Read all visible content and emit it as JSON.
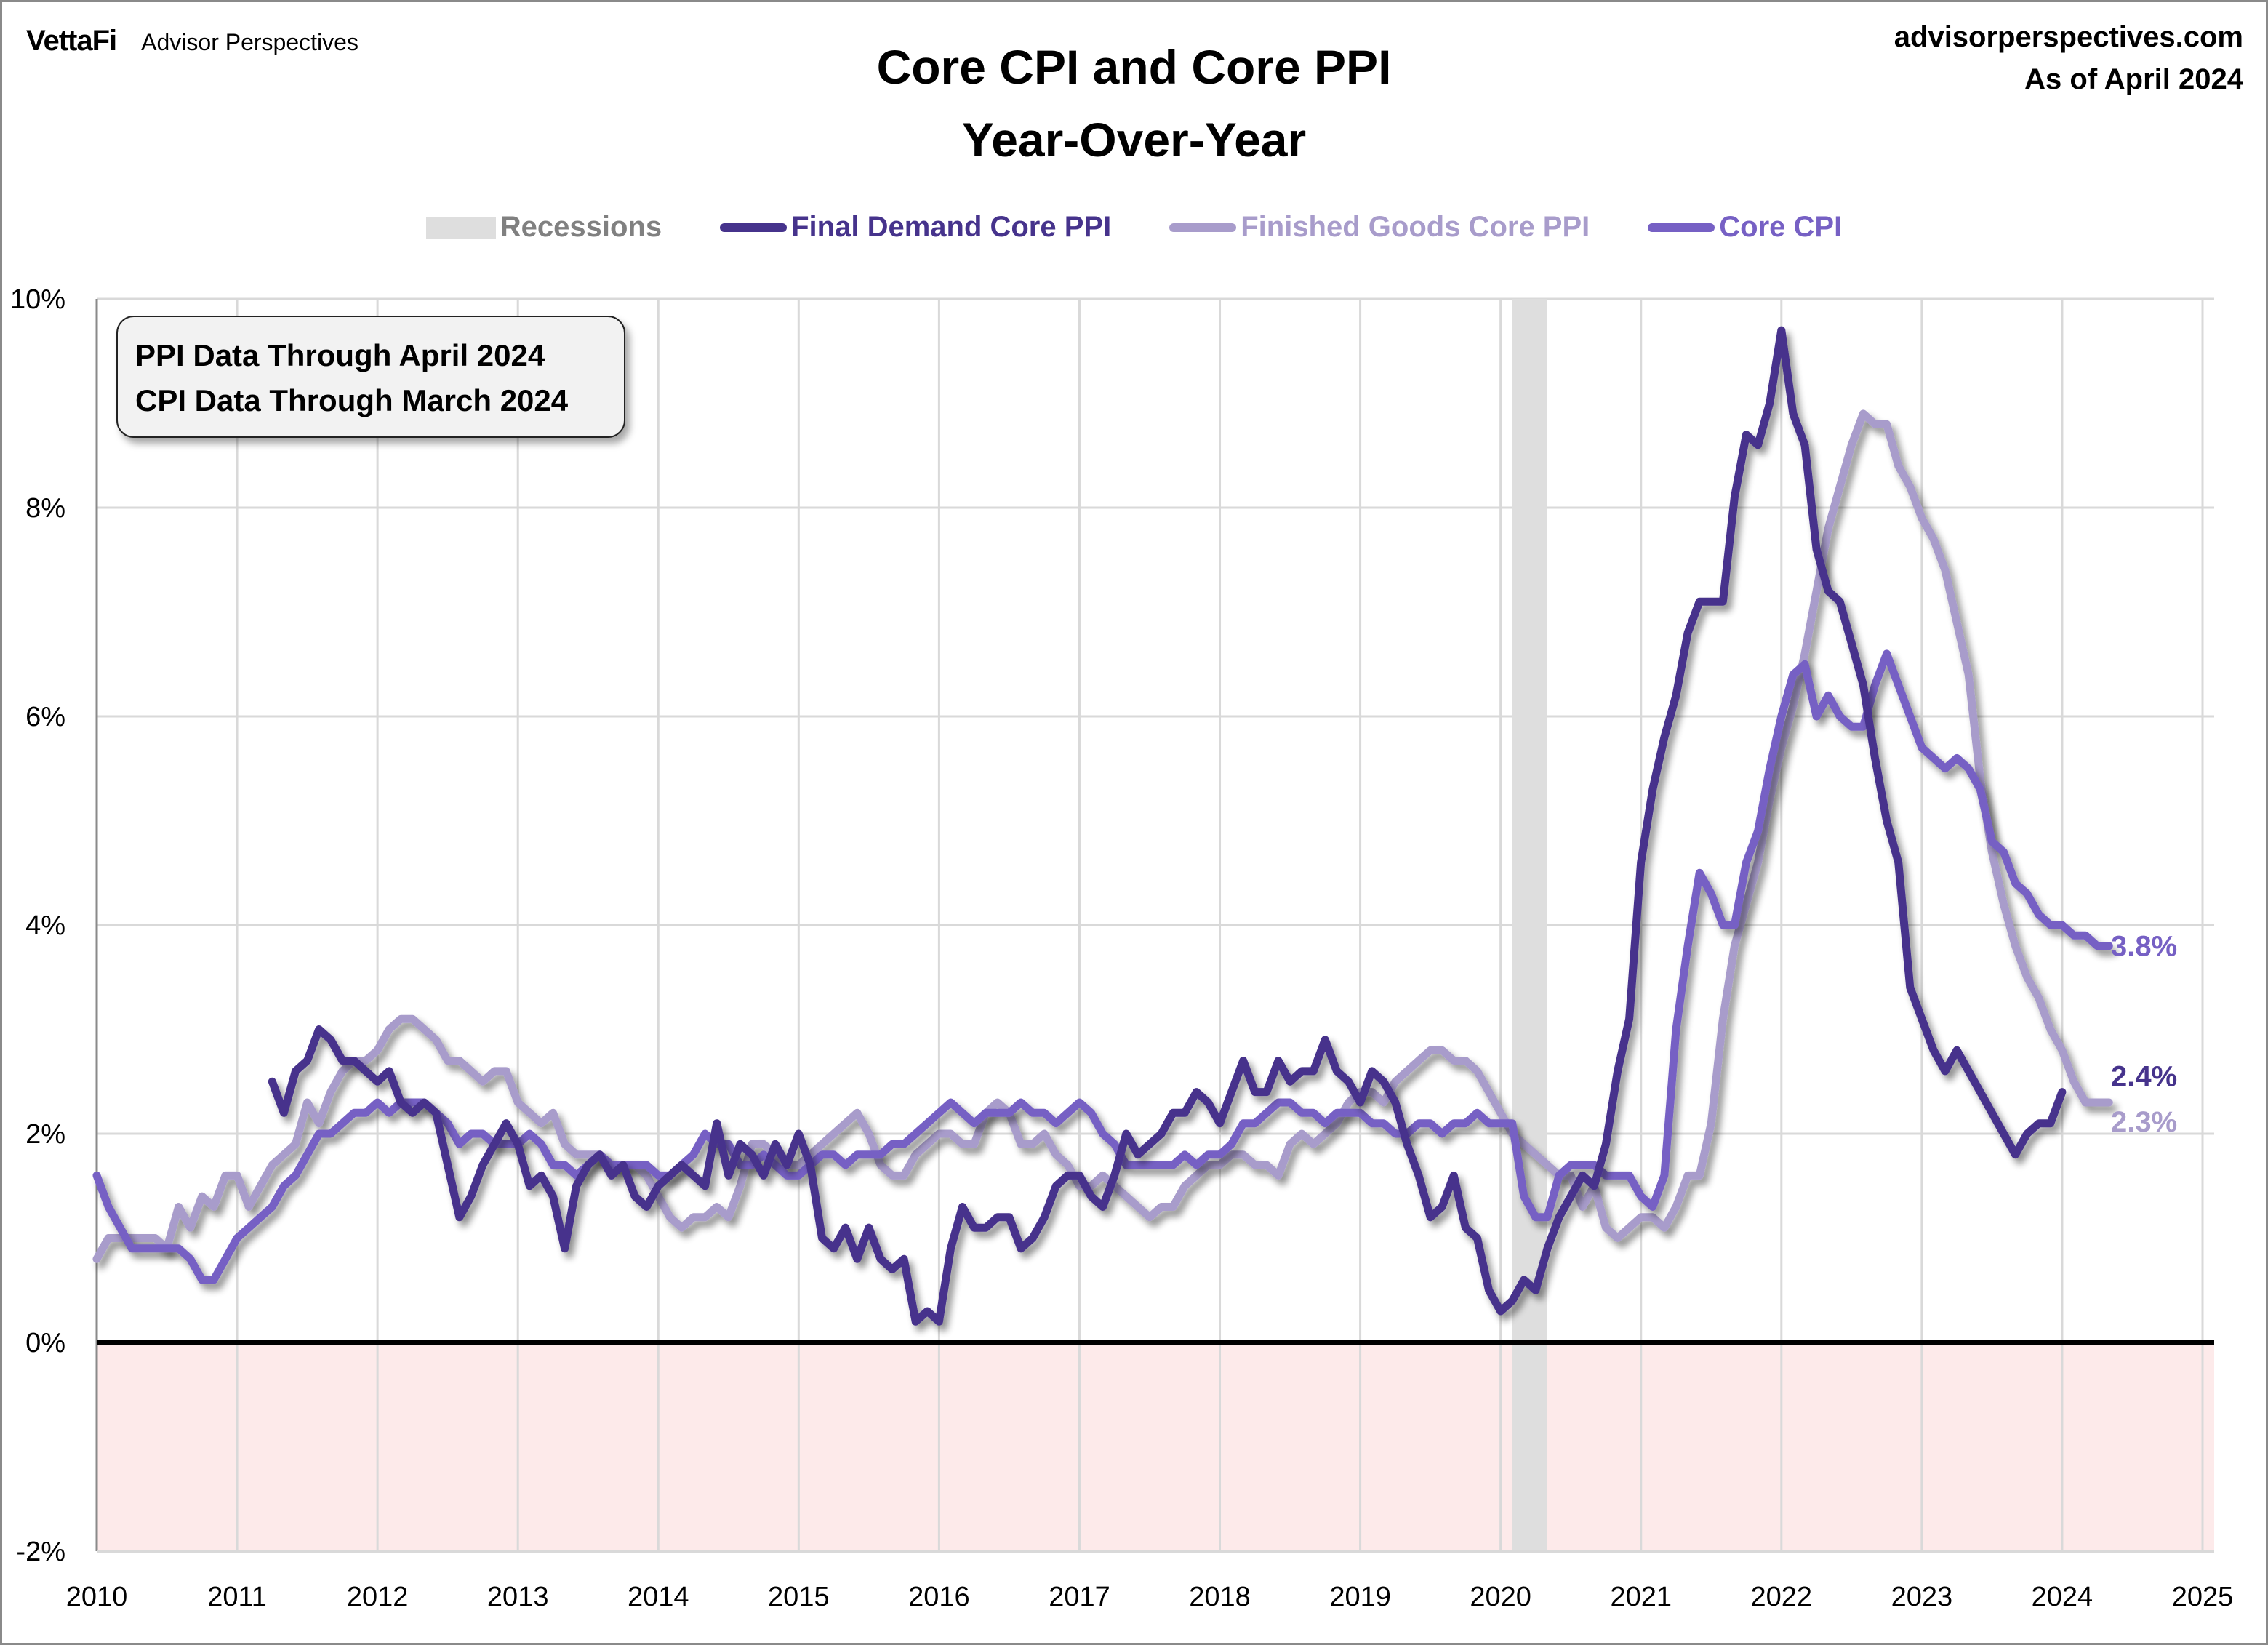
{
  "header": {
    "brand_logo": "VettaFi",
    "brand_name": "Advisor Perspectives",
    "title_line1": "Core CPI and Core PPI",
    "title_line2": "Year-Over-Year",
    "source_line1": "advisorperspectives.com",
    "source_line2": "As of April 2024"
  },
  "note": {
    "line1": "PPI Data Through April 2024",
    "line2": "CPI Data Through March 2024"
  },
  "legend": [
    {
      "label": "Recessions",
      "color": "#dedede",
      "kind": "box",
      "text_color": "#808080"
    },
    {
      "label": "Final Demand Core PPI",
      "color": "#46338c",
      "kind": "line",
      "text_color": "#46338c"
    },
    {
      "label": "Finished Goods Core PPI",
      "color": "#a89ccb",
      "kind": "line",
      "text_color": "#a89ccb"
    },
    {
      "label": "Core CPI",
      "color": "#7660c4",
      "kind": "line",
      "text_color": "#7660c4"
    }
  ],
  "chart_data": {
    "type": "line",
    "title": "Core CPI and Core PPI Year-Over-Year",
    "xlabel": "",
    "ylabel": "",
    "xlim": [
      2010,
      2025
    ],
    "ylim": [
      -2,
      10
    ],
    "x_ticks": [
      "2010",
      "2011",
      "2012",
      "2013",
      "2014",
      "2015",
      "2016",
      "2017",
      "2018",
      "2019",
      "2020",
      "2021",
      "2022",
      "2023",
      "2024",
      "2025"
    ],
    "y_ticks": [
      -2,
      0,
      2,
      4,
      6,
      8,
      10
    ],
    "y_tick_labels": [
      "-2%",
      "0%",
      "2%",
      "4%",
      "6%",
      "8%",
      "10%"
    ],
    "grid": true,
    "legend_position": "top-center",
    "negative_region_shading": "#fdeaea",
    "zero_line": true,
    "recessions": [
      {
        "start": 2020.083,
        "end": 2020.333
      }
    ],
    "series": [
      {
        "name": "Final Demand Core PPI",
        "color": "#46338c",
        "start": 2011.25,
        "step_months": 1,
        "end_label": "2.4%",
        "values": [
          2.5,
          2.2,
          2.6,
          2.7,
          3.0,
          2.9,
          2.7,
          2.7,
          2.6,
          2.5,
          2.6,
          2.3,
          2.2,
          2.3,
          2.2,
          1.7,
          1.2,
          1.4,
          1.7,
          1.9,
          2.1,
          1.9,
          1.5,
          1.6,
          1.4,
          0.9,
          1.5,
          1.7,
          1.8,
          1.6,
          1.7,
          1.4,
          1.3,
          1.5,
          1.6,
          1.7,
          1.6,
          1.5,
          2.1,
          1.6,
          1.9,
          1.8,
          1.6,
          1.9,
          1.7,
          2.0,
          1.7,
          1.0,
          0.9,
          1.1,
          0.8,
          1.1,
          0.8,
          0.7,
          0.8,
          0.2,
          0.3,
          0.2,
          0.9,
          1.3,
          1.1,
          1.1,
          1.2,
          1.2,
          0.9,
          1.0,
          1.2,
          1.5,
          1.6,
          1.6,
          1.4,
          1.3,
          1.6,
          2.0,
          1.8,
          1.9,
          2.0,
          2.2,
          2.2,
          2.4,
          2.3,
          2.1,
          2.4,
          2.7,
          2.4,
          2.4,
          2.7,
          2.5,
          2.6,
          2.6,
          2.9,
          2.6,
          2.5,
          2.3,
          2.6,
          2.5,
          2.3,
          1.9,
          1.6,
          1.2,
          1.3,
          1.6,
          1.1,
          1.0,
          0.5,
          0.3,
          0.4,
          0.6,
          0.5,
          0.9,
          1.2,
          1.4,
          1.6,
          1.5,
          1.9,
          2.6,
          3.1,
          4.6,
          5.3,
          5.8,
          6.2,
          6.8,
          7.1,
          7.1,
          7.1,
          8.1,
          8.7,
          8.6,
          9.0,
          9.7,
          8.9,
          8.6,
          7.6,
          7.2,
          7.1,
          6.7,
          6.3,
          5.6,
          5.0,
          4.6,
          3.4,
          3.1,
          2.8,
          2.6,
          2.8,
          2.6,
          2.4,
          2.2,
          2.0,
          1.8,
          2.0,
          2.1,
          2.1,
          2.4
        ]
      },
      {
        "name": "Finished Goods Core PPI",
        "color": "#a89ccb",
        "start": 2010.0,
        "step_months": 1,
        "end_label": "2.3%",
        "values": [
          0.8,
          1.0,
          1.0,
          1.0,
          1.0,
          1.0,
          0.9,
          1.3,
          1.1,
          1.4,
          1.3,
          1.6,
          1.6,
          1.3,
          1.5,
          1.7,
          1.8,
          1.9,
          2.3,
          2.1,
          2.4,
          2.6,
          2.7,
          2.7,
          2.8,
          3.0,
          3.1,
          3.1,
          3.0,
          2.9,
          2.7,
          2.7,
          2.6,
          2.5,
          2.6,
          2.6,
          2.3,
          2.2,
          2.1,
          2.2,
          1.9,
          1.8,
          1.8,
          1.8,
          1.7,
          1.7,
          1.7,
          1.6,
          1.4,
          1.2,
          1.1,
          1.2,
          1.2,
          1.3,
          1.2,
          1.5,
          1.9,
          1.9,
          1.8,
          1.7,
          1.7,
          1.8,
          1.9,
          2.0,
          2.1,
          2.2,
          2.0,
          1.7,
          1.6,
          1.6,
          1.8,
          1.9,
          2.0,
          2.0,
          1.9,
          1.9,
          2.2,
          2.3,
          2.2,
          1.9,
          1.9,
          2.0,
          1.8,
          1.7,
          1.5,
          1.5,
          1.6,
          1.5,
          1.4,
          1.3,
          1.2,
          1.3,
          1.3,
          1.5,
          1.6,
          1.7,
          1.7,
          1.8,
          1.8,
          1.7,
          1.7,
          1.6,
          1.9,
          2.0,
          1.9,
          2.0,
          2.1,
          2.3,
          2.4,
          2.4,
          2.3,
          2.5,
          2.6,
          2.7,
          2.8,
          2.8,
          2.7,
          2.7,
          2.6,
          2.4,
          2.2,
          2.0,
          1.9,
          1.8,
          1.7,
          1.6,
          1.6,
          1.3,
          1.5,
          1.1,
          1.0,
          1.1,
          1.2,
          1.2,
          1.1,
          1.3,
          1.6,
          1.6,
          2.1,
          3.1,
          3.8,
          4.2,
          4.6,
          5.2,
          5.7,
          6.1,
          6.6,
          7.2,
          7.8,
          8.2,
          8.6,
          8.9,
          8.8,
          8.8,
          8.4,
          8.2,
          7.9,
          7.7,
          7.4,
          6.9,
          6.4,
          5.4,
          4.7,
          4.2,
          3.8,
          3.5,
          3.3,
          3.0,
          2.8,
          2.5,
          2.3,
          2.3,
          2.3
        ]
      },
      {
        "name": "Core CPI",
        "color": "#7660c4",
        "start": 2010.0,
        "step_months": 1,
        "end_label": "3.8%",
        "values": [
          1.6,
          1.3,
          1.1,
          0.9,
          0.9,
          0.9,
          0.9,
          0.9,
          0.8,
          0.6,
          0.6,
          0.8,
          1.0,
          1.1,
          1.2,
          1.3,
          1.5,
          1.6,
          1.8,
          2.0,
          2.0,
          2.1,
          2.2,
          2.2,
          2.3,
          2.2,
          2.3,
          2.3,
          2.3,
          2.2,
          2.1,
          1.9,
          2.0,
          2.0,
          1.9,
          1.9,
          1.9,
          2.0,
          1.9,
          1.7,
          1.7,
          1.6,
          1.7,
          1.8,
          1.7,
          1.7,
          1.7,
          1.7,
          1.6,
          1.6,
          1.7,
          1.8,
          2.0,
          1.9,
          1.9,
          1.7,
          1.7,
          1.8,
          1.7,
          1.6,
          1.6,
          1.7,
          1.8,
          1.8,
          1.7,
          1.8,
          1.8,
          1.8,
          1.9,
          1.9,
          2.0,
          2.1,
          2.2,
          2.3,
          2.2,
          2.1,
          2.2,
          2.2,
          2.2,
          2.3,
          2.2,
          2.2,
          2.1,
          2.2,
          2.3,
          2.2,
          2.0,
          1.9,
          1.7,
          1.7,
          1.7,
          1.7,
          1.7,
          1.8,
          1.7,
          1.8,
          1.8,
          1.9,
          2.1,
          2.1,
          2.2,
          2.3,
          2.3,
          2.2,
          2.2,
          2.1,
          2.2,
          2.2,
          2.2,
          2.1,
          2.1,
          2.0,
          2.0,
          2.1,
          2.1,
          2.0,
          2.1,
          2.1,
          2.2,
          2.1,
          2.1,
          2.1,
          1.4,
          1.2,
          1.2,
          1.6,
          1.7,
          1.7,
          1.7,
          1.6,
          1.6,
          1.6,
          1.4,
          1.3,
          1.6,
          3.0,
          3.8,
          4.5,
          4.3,
          4.0,
          4.0,
          4.6,
          4.9,
          5.5,
          6.0,
          6.4,
          6.5,
          6.0,
          6.2,
          6.0,
          5.9,
          5.9,
          6.3,
          6.6,
          6.3,
          6.0,
          5.7,
          5.6,
          5.5,
          5.6,
          5.5,
          5.3,
          4.8,
          4.7,
          4.4,
          4.3,
          4.1,
          4.0,
          4.0,
          3.9,
          3.9,
          3.8,
          3.8
        ]
      }
    ]
  }
}
